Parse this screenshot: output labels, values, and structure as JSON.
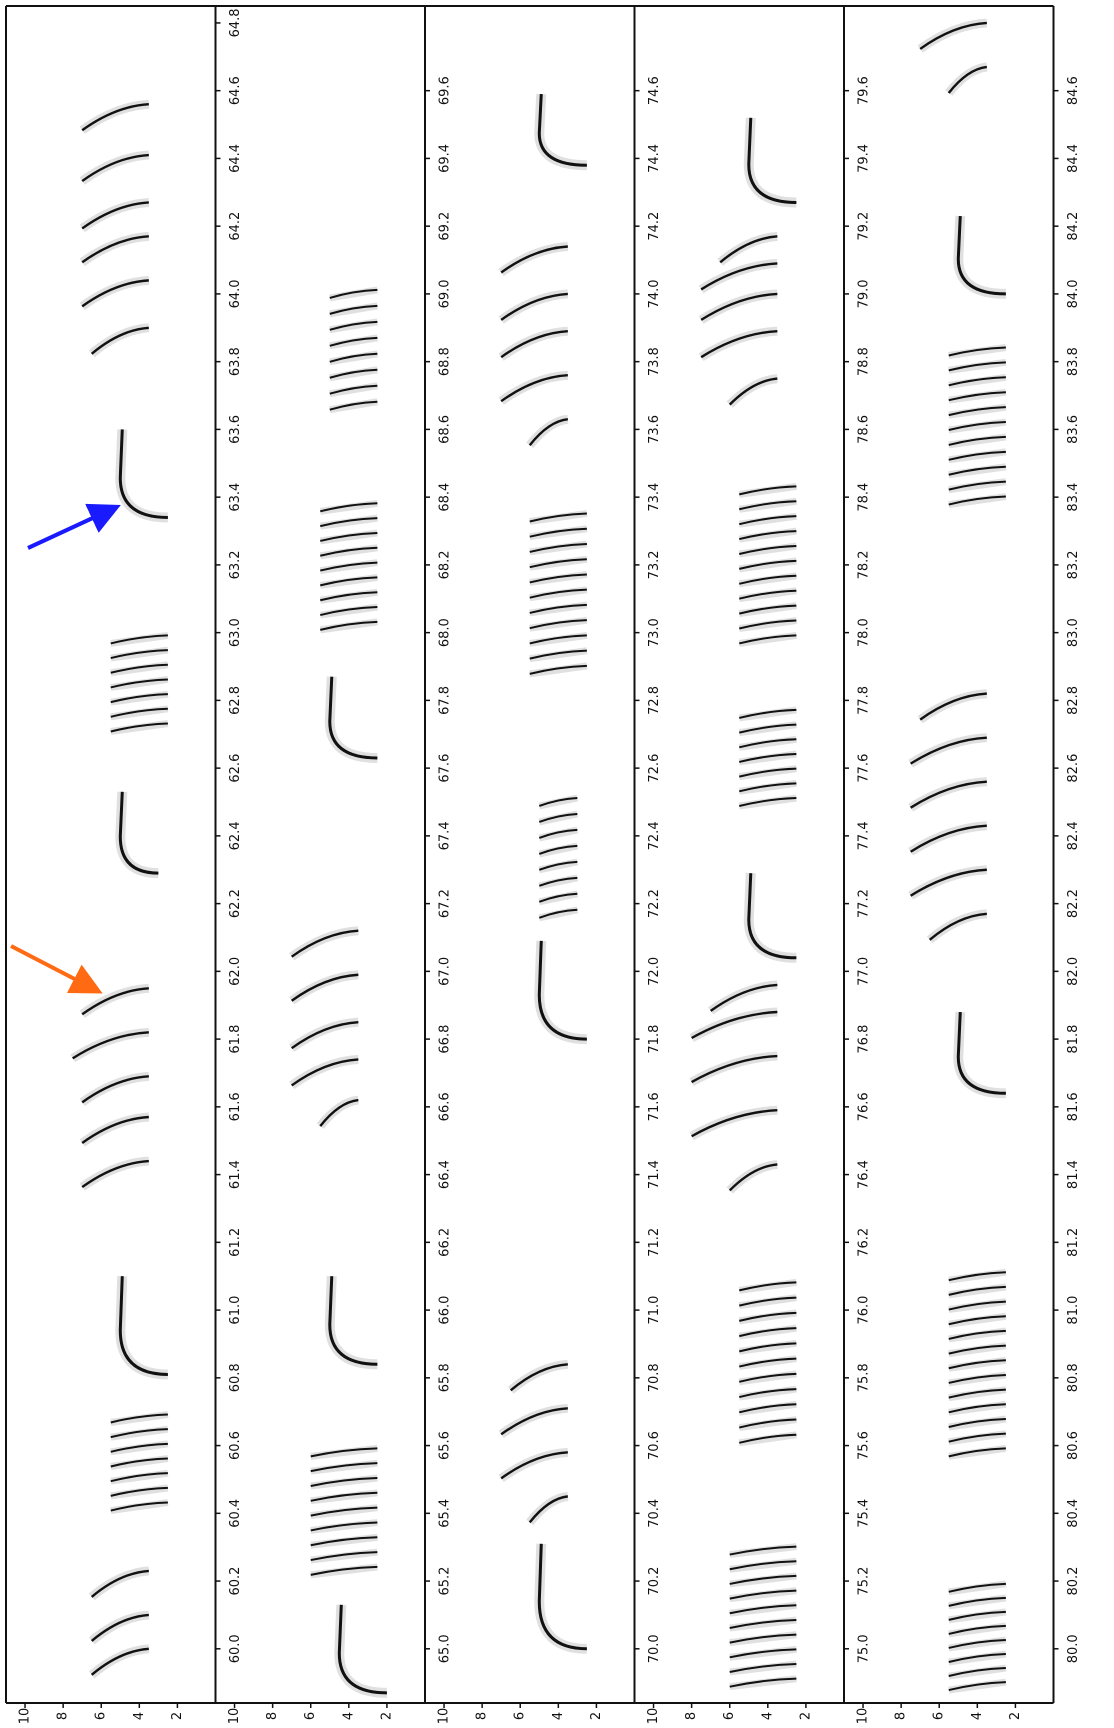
{
  "chart_data": [
    {
      "type": "spectrogram",
      "xlim": [
        59.84,
        64.85
      ],
      "ylim": [
        0,
        11
      ],
      "yticks": [
        10,
        8,
        6,
        4,
        2
      ],
      "xticks": [
        {
          "value": 60,
          "label": "60.0"
        },
        60.2,
        60.4,
        60.6,
        60.8,
        {
          "value": 61,
          "label": "61.0"
        },
        61.2,
        61.4,
        61.6,
        61.8,
        {
          "value": 62,
          "label": "62.0"
        },
        62.2,
        62.4,
        62.6,
        62.8,
        {
          "value": 63,
          "label": "63.0"
        },
        63.2,
        63.4,
        63.6,
        63.8,
        {
          "value": 64,
          "label": "64.0"
        },
        64.2,
        64.4,
        64.6,
        64.8
      ],
      "events": [
        {
          "kind": "sweep",
          "t": 60.0,
          "f": [
            6.5,
            3.5
          ]
        },
        {
          "kind": "sweep",
          "t": 60.1,
          "f": [
            6.5,
            3.5
          ]
        },
        {
          "kind": "sweep",
          "t": 60.23,
          "f": [
            6.5,
            3.5
          ]
        },
        {
          "kind": "trill",
          "t": [
            60.42,
            60.68
          ],
          "f": [
            5.5,
            2.5
          ]
        },
        {
          "kind": "hook",
          "t": [
            60.81,
            61.1
          ],
          "f": [
            2.5,
            5
          ]
        },
        {
          "kind": "sweep",
          "t": 61.44,
          "f": [
            7,
            3.5
          ]
        },
        {
          "kind": "sweep",
          "t": 61.57,
          "f": [
            7,
            3.5
          ]
        },
        {
          "kind": "sweep",
          "t": 61.69,
          "f": [
            7,
            3.5
          ]
        },
        {
          "kind": "sweep",
          "t": 61.82,
          "f": [
            7.5,
            3.5
          ]
        },
        {
          "kind": "sweep",
          "t": 61.95,
          "f": [
            7,
            3.5
          ]
        },
        {
          "kind": "hook",
          "t": [
            62.29,
            62.53
          ],
          "f": [
            3,
            5
          ]
        },
        {
          "kind": "trill",
          "t": [
            62.72,
            62.98
          ],
          "f": [
            5.5,
            2.5
          ]
        },
        {
          "kind": "hook",
          "t": [
            63.34,
            63.6
          ],
          "f": [
            2.5,
            5
          ]
        },
        {
          "kind": "sweep",
          "t": 63.9,
          "f": [
            6.5,
            3.5
          ]
        },
        {
          "kind": "sweep",
          "t": 64.04,
          "f": [
            7,
            3.5
          ]
        },
        {
          "kind": "sweep",
          "t": 64.17,
          "f": [
            7,
            3.5
          ]
        },
        {
          "kind": "sweep",
          "t": 64.27,
          "f": [
            7,
            3.5
          ]
        },
        {
          "kind": "sweep",
          "t": 64.41,
          "f": [
            7,
            3.5
          ]
        },
        {
          "kind": "sweep",
          "t": 64.56,
          "f": [
            7,
            3.5
          ]
        }
      ]
    },
    {
      "type": "spectrogram",
      "xlim": [
        64.84,
        69.85
      ],
      "ylim": [
        0,
        11
      ],
      "yticks": [
        10,
        8,
        6,
        4,
        2
      ],
      "xticks": [
        {
          "value": 65,
          "label": "65.0"
        },
        65.2,
        65.4,
        65.6,
        65.8,
        {
          "value": 66,
          "label": "66.0"
        },
        66.2,
        66.4,
        66.6,
        66.8,
        {
          "value": 67,
          "label": "67.0"
        },
        67.2,
        67.4,
        67.6,
        67.8,
        {
          "value": 68,
          "label": "68.0"
        },
        68.2,
        68.4,
        68.6,
        68.8,
        {
          "value": 69,
          "label": "69.0"
        },
        69.2,
        69.4,
        69.6
      ],
      "events": [
        {
          "kind": "hook",
          "t": [
            64.87,
            65.13
          ],
          "f": [
            2,
            4.5
          ]
        },
        {
          "kind": "trill",
          "t": [
            65.23,
            65.58
          ],
          "f": [
            6,
            2.5
          ]
        },
        {
          "kind": "hook",
          "t": [
            65.84,
            66.1
          ],
          "f": [
            2.5,
            5
          ]
        },
        {
          "kind": "sweep",
          "t": 66.62,
          "f": [
            5.5,
            3.5
          ]
        },
        {
          "kind": "sweep",
          "t": 66.74,
          "f": [
            7,
            3.5
          ]
        },
        {
          "kind": "sweep",
          "t": 66.85,
          "f": [
            7,
            3.5
          ]
        },
        {
          "kind": "sweep",
          "t": 66.99,
          "f": [
            7,
            3.5
          ]
        },
        {
          "kind": "sweep",
          "t": 67.12,
          "f": [
            7,
            3.5
          ]
        },
        {
          "kind": "hook",
          "t": [
            67.63,
            67.87
          ],
          "f": [
            2.5,
            5
          ]
        },
        {
          "kind": "trill",
          "t": [
            68.02,
            68.37
          ],
          "f": [
            5.5,
            2.5
          ]
        },
        {
          "kind": "trill",
          "t": [
            68.67,
            69.0
          ],
          "f": [
            5,
            2.5
          ]
        }
      ]
    },
    {
      "type": "spectrogram",
      "xlim": [
        69.84,
        74.85
      ],
      "ylim": [
        0,
        11
      ],
      "yticks": [
        10,
        8,
        6,
        4,
        2
      ],
      "xticks": [
        {
          "value": 70,
          "label": "70.0"
        },
        70.2,
        70.4,
        70.6,
        70.8,
        {
          "value": 71,
          "label": "71.0"
        },
        71.2,
        71.4,
        71.6,
        71.8,
        {
          "value": 72,
          "label": "72.0"
        },
        72.2,
        72.4,
        72.6,
        72.8,
        {
          "value": 73,
          "label": "73.0"
        },
        73.2,
        73.4,
        73.6,
        73.8,
        {
          "value": 74,
          "label": "74.0"
        },
        74.2,
        74.4,
        74.6
      ],
      "events": [
        {
          "kind": "hook",
          "t": [
            70.0,
            70.31
          ],
          "f": [
            2.5,
            5
          ]
        },
        {
          "kind": "sweep",
          "t": 70.45,
          "f": [
            5.5,
            3.5
          ]
        },
        {
          "kind": "sweep",
          "t": 70.58,
          "f": [
            7,
            3.5
          ]
        },
        {
          "kind": "sweep",
          "t": 70.71,
          "f": [
            7,
            3.5
          ]
        },
        {
          "kind": "sweep",
          "t": 70.84,
          "f": [
            6.5,
            3.5
          ]
        },
        {
          "kind": "hook",
          "t": [
            71.8,
            72.09
          ],
          "f": [
            2.5,
            5
          ]
        },
        {
          "kind": "trill",
          "t": [
            72.17,
            72.5
          ],
          "f": [
            5,
            3
          ]
        },
        {
          "kind": "trill",
          "t": [
            72.89,
            73.34
          ],
          "f": [
            5.5,
            2.5
          ]
        },
        {
          "kind": "sweep",
          "t": 73.63,
          "f": [
            5.5,
            3.5
          ]
        },
        {
          "kind": "sweep",
          "t": 73.76,
          "f": [
            7,
            3.5
          ]
        },
        {
          "kind": "sweep",
          "t": 73.89,
          "f": [
            7,
            3.5
          ]
        },
        {
          "kind": "sweep",
          "t": 74.0,
          "f": [
            7,
            3.5
          ]
        },
        {
          "kind": "sweep",
          "t": 74.14,
          "f": [
            7,
            3.5
          ]
        },
        {
          "kind": "hook",
          "t": [
            74.38,
            74.59
          ],
          "f": [
            2.5,
            5
          ]
        }
      ]
    },
    {
      "type": "spectrogram",
      "xlim": [
        74.84,
        79.85
      ],
      "ylim": [
        0,
        11
      ],
      "yticks": [
        10,
        8,
        6,
        4,
        2
      ],
      "xticks": [
        {
          "value": 75,
          "label": "75.0"
        },
        75.2,
        75.4,
        75.6,
        75.8,
        {
          "value": 76,
          "label": "76.0"
        },
        76.2,
        76.4,
        76.6,
        76.8,
        {
          "value": 77,
          "label": "77.0"
        },
        77.2,
        77.4,
        77.6,
        77.8,
        {
          "value": 78,
          "label": "78.0"
        },
        78.2,
        78.4,
        78.6,
        78.8,
        {
          "value": 79,
          "label": "79.0"
        },
        79.2,
        79.4,
        79.6
      ],
      "events": [
        {
          "kind": "trill",
          "t": [
            74.9,
            75.29
          ],
          "f": [
            6,
            2.5
          ]
        },
        {
          "kind": "trill",
          "t": [
            75.62,
            76.07
          ],
          "f": [
            5.5,
            2.5
          ]
        },
        {
          "kind": "sweep",
          "t": 76.43,
          "f": [
            6,
            3.5
          ]
        },
        {
          "kind": "sweep",
          "t": 76.59,
          "f": [
            8,
            3.5
          ]
        },
        {
          "kind": "sweep",
          "t": 76.75,
          "f": [
            8,
            3.5
          ]
        },
        {
          "kind": "sweep",
          "t": 76.88,
          "f": [
            8,
            3.5
          ]
        },
        {
          "kind": "sweep",
          "t": 76.96,
          "f": [
            7,
            3.5
          ]
        },
        {
          "kind": "hook",
          "t": [
            77.04,
            77.29
          ],
          "f": [
            2.5,
            5
          ]
        },
        {
          "kind": "trill",
          "t": [
            77.5,
            77.76
          ],
          "f": [
            5.5,
            2.5
          ]
        },
        {
          "kind": "trill",
          "t": [
            77.98,
            78.42
          ],
          "f": [
            5.5,
            2.5
          ]
        },
        {
          "kind": "sweep",
          "t": 78.75,
          "f": [
            6,
            3.5
          ]
        },
        {
          "kind": "sweep",
          "t": 78.89,
          "f": [
            7.5,
            3.5
          ]
        },
        {
          "kind": "sweep",
          "t": 79.0,
          "f": [
            7.5,
            3.5
          ]
        },
        {
          "kind": "sweep",
          "t": 79.09,
          "f": [
            7.5,
            3.5
          ]
        },
        {
          "kind": "sweep",
          "t": 79.17,
          "f": [
            6.5,
            3.5
          ]
        },
        {
          "kind": "hook",
          "t": [
            79.27,
            79.52
          ],
          "f": [
            2.5,
            5
          ]
        }
      ]
    },
    {
      "type": "spectrogram",
      "xlim": [
        79.84,
        84.85
      ],
      "ylim": [
        0,
        11
      ],
      "yticks": [
        10,
        8,
        6,
        4,
        2
      ],
      "xticks": [
        {
          "value": 80,
          "label": "80.0"
        },
        80.2,
        80.4,
        80.6,
        80.8,
        {
          "value": 81,
          "label": "81.0"
        },
        81.2,
        81.4,
        81.6,
        81.8,
        {
          "value": 82,
          "label": "82.0"
        },
        82.2,
        82.4,
        82.6,
        82.8,
        {
          "value": 83,
          "label": "83.0"
        },
        83.2,
        83.4,
        83.6,
        83.8,
        {
          "value": 84,
          "label": "84.0"
        },
        84.2,
        84.4,
        84.6
      ],
      "events": [
        {
          "kind": "trill",
          "t": [
            79.89,
            80.18
          ],
          "f": [
            5.5,
            2.5
          ]
        },
        {
          "kind": "trill",
          "t": [
            80.58,
            81.1
          ],
          "f": [
            5.5,
            2.5
          ]
        },
        {
          "kind": "hook",
          "t": [
            81.64,
            81.88
          ],
          "f": [
            2.5,
            5
          ]
        },
        {
          "kind": "sweep",
          "t": 82.17,
          "f": [
            6.5,
            3.5
          ]
        },
        {
          "kind": "sweep",
          "t": 82.3,
          "f": [
            7.5,
            3.5
          ]
        },
        {
          "kind": "sweep",
          "t": 82.43,
          "f": [
            7.5,
            3.5
          ]
        },
        {
          "kind": "sweep",
          "t": 82.56,
          "f": [
            7.5,
            3.5
          ]
        },
        {
          "kind": "sweep",
          "t": 82.69,
          "f": [
            7.5,
            3.5
          ]
        },
        {
          "kind": "sweep",
          "t": 82.82,
          "f": [
            7,
            3.5
          ]
        },
        {
          "kind": "trill",
          "t": [
            83.39,
            83.83
          ],
          "f": [
            5.5,
            2.5
          ]
        },
        {
          "kind": "hook",
          "t": [
            84.0,
            84.23
          ],
          "f": [
            2.5,
            5
          ]
        },
        {
          "kind": "sweep",
          "t": 84.67,
          "f": [
            5.5,
            3.5
          ]
        },
        {
          "kind": "sweep",
          "t": 84.8,
          "f": [
            7,
            3.5
          ]
        }
      ]
    }
  ]
}
